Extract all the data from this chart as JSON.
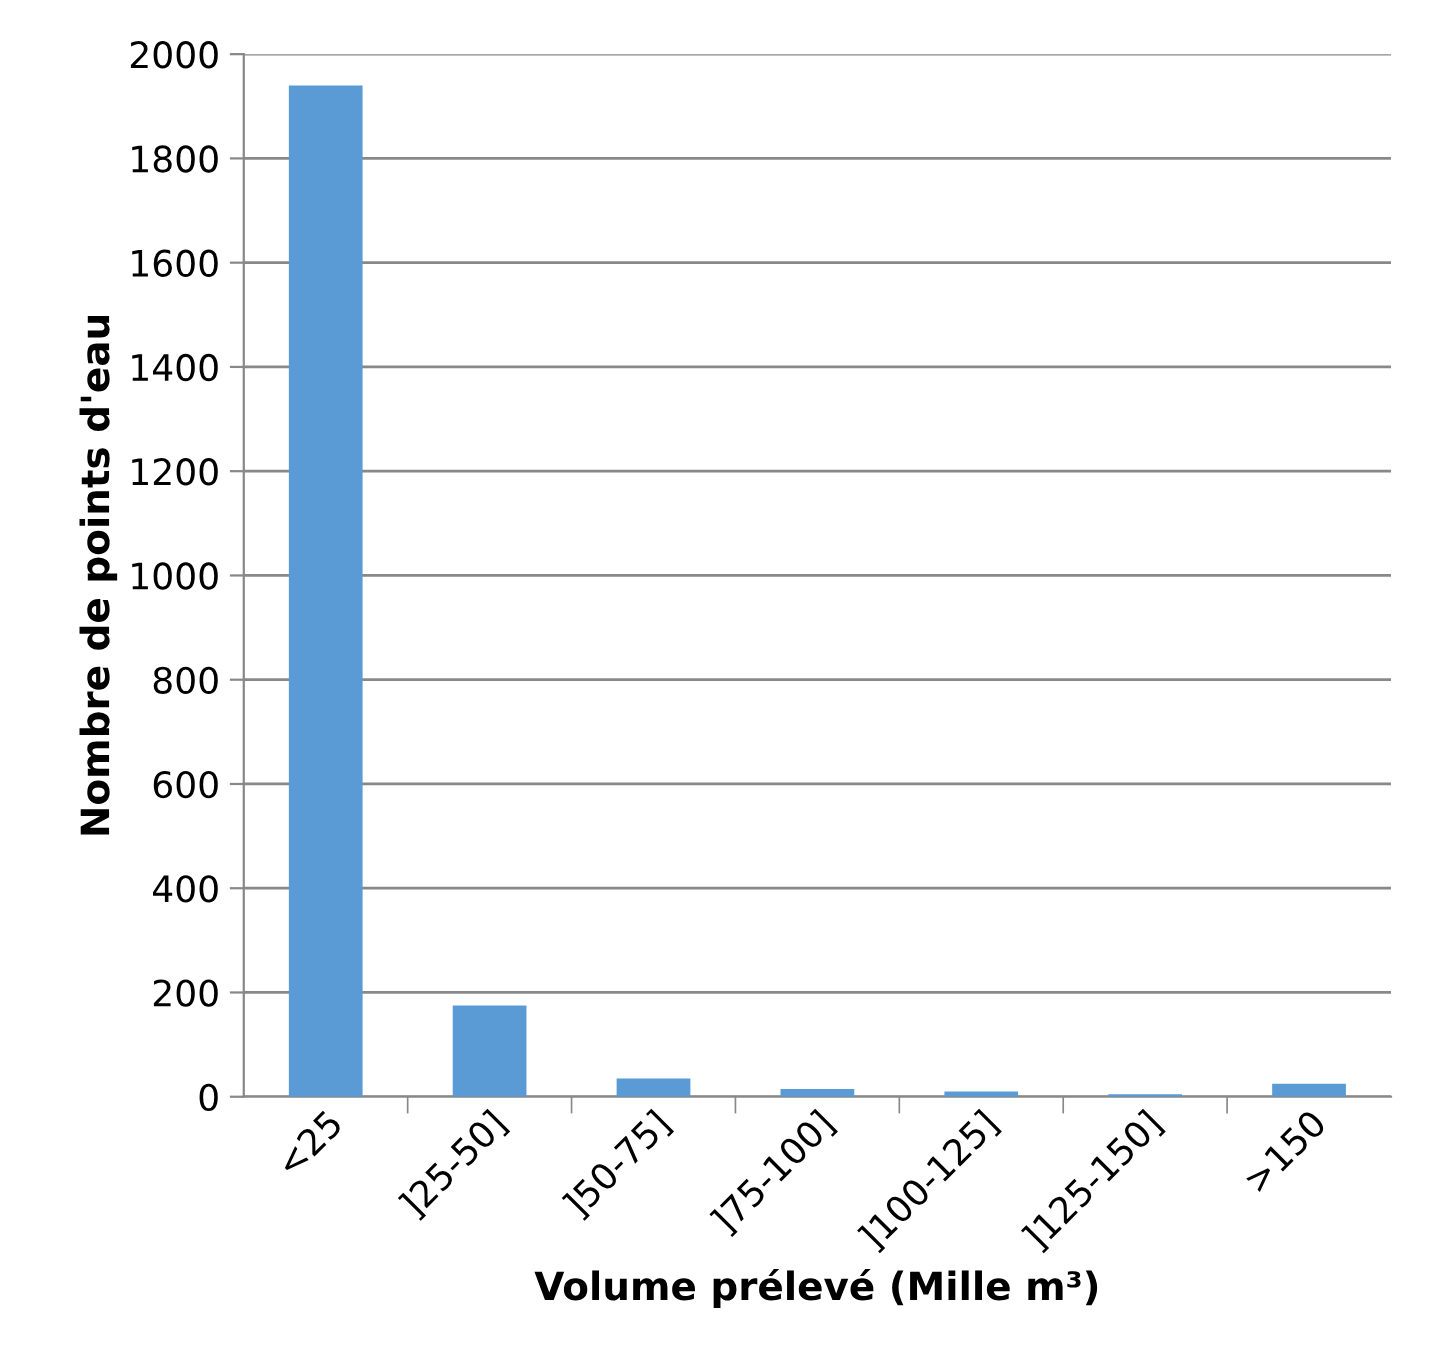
{
  "chart_data": {
    "type": "bar",
    "xlabel": "Volume prélevé (Mille m³)",
    "ylabel": "Nombre de points d'eau",
    "categories": [
      "<25",
      "]25-50]",
      "]50-75]",
      "]75-100]",
      "]100-125]",
      "]125-150]",
      ">150"
    ],
    "values": [
      1940,
      175,
      35,
      15,
      10,
      5,
      25
    ],
    "color": "#5b9bd5",
    "ylim": [
      0,
      2000
    ],
    "yticks": [
      0,
      200,
      400,
      600,
      800,
      1000,
      1200,
      1400,
      1600,
      1800,
      2000
    ],
    "grid": "y"
  }
}
